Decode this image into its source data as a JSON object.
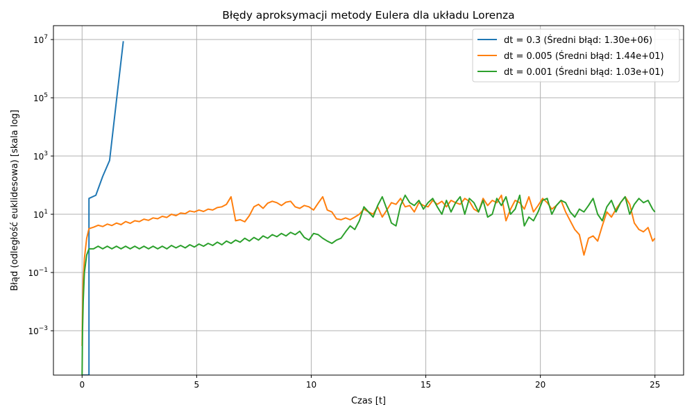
{
  "chart_data": {
    "type": "line",
    "title": "Błędy aproksymacji metody Eulera dla układu Lorenza",
    "xlabel": "Czas [t]",
    "ylabel": "Błąd (odległość euklidesowa) [skala log]",
    "xlim": [
      -1.25,
      26.25
    ],
    "ylim": [
      3e-05,
      30000000
    ],
    "yscale": "log",
    "grid": true,
    "legend_position": "top-right",
    "x_ticks": [
      0,
      5,
      10,
      15,
      20,
      25
    ],
    "x_tick_labels": [
      "0",
      "5",
      "10",
      "15",
      "20",
      "25"
    ],
    "y_ticks": [
      0.001,
      0.1,
      10,
      1000,
      100000,
      10000000
    ],
    "y_tick_labels": [
      {
        "base": "10",
        "exp": "−3"
      },
      {
        "base": "10",
        "exp": "−1"
      },
      {
        "base": "10",
        "exp": "1"
      },
      {
        "base": "10",
        "exp": "3"
      },
      {
        "base": "10",
        "exp": "5"
      },
      {
        "base": "10",
        "exp": "7"
      }
    ],
    "series": [
      {
        "name": "dt = 0.3 (Średni błąd: 1.30e+06)",
        "color": "#1f77b4",
        "x": [
          0.0,
          0.3,
          0.3,
          0.6,
          0.9,
          1.2,
          1.5,
          1.8
        ],
        "y": [
          3e-05,
          3e-05,
          35,
          45,
          200,
          700,
          80000,
          8800000
        ]
      },
      {
        "name": "dt = 0.005 (Średni błąd: 1.44e+01)",
        "color": "#ff7f0e",
        "x": [
          0.0,
          0.02,
          0.05,
          0.1,
          0.2,
          0.3,
          0.5,
          0.7,
          0.9,
          1.1,
          1.3,
          1.5,
          1.7,
          1.9,
          2.1,
          2.3,
          2.5,
          2.7,
          2.9,
          3.1,
          3.3,
          3.5,
          3.7,
          3.9,
          4.1,
          4.3,
          4.5,
          4.7,
          4.9,
          5.1,
          5.3,
          5.5,
          5.7,
          5.9,
          6.1,
          6.3,
          6.5,
          6.7,
          6.9,
          7.1,
          7.3,
          7.5,
          7.7,
          7.9,
          8.1,
          8.3,
          8.5,
          8.7,
          8.9,
          9.1,
          9.3,
          9.5,
          9.7,
          9.9,
          10.1,
          10.3,
          10.5,
          10.7,
          10.9,
          11.1,
          11.3,
          11.5,
          11.7,
          11.9,
          12.1,
          12.3,
          12.5,
          12.7,
          12.9,
          13.1,
          13.3,
          13.5,
          13.7,
          13.9,
          14.1,
          14.3,
          14.5,
          14.7,
          14.9,
          15.1,
          15.3,
          15.5,
          15.7,
          15.9,
          16.1,
          16.3,
          16.5,
          16.7,
          16.9,
          17.1,
          17.3,
          17.5,
          17.7,
          17.9,
          18.1,
          18.3,
          18.5,
          18.7,
          18.9,
          19.1,
          19.3,
          19.5,
          19.7,
          19.9,
          20.1,
          20.3,
          20.5,
          20.7,
          20.9,
          21.1,
          21.3,
          21.5,
          21.7,
          21.9,
          22.1,
          22.3,
          22.5,
          22.7,
          22.9,
          23.1,
          23.3,
          23.5,
          23.7,
          23.9,
          24.1,
          24.3,
          24.5,
          24.7,
          24.9,
          25.0
        ],
        "y": [
          0.0003,
          0.004,
          0.05,
          0.3,
          1.5,
          3.2,
          3.6,
          4.2,
          3.8,
          4.6,
          4.1,
          5.0,
          4.4,
          5.6,
          4.9,
          6.0,
          5.6,
          6.8,
          6.2,
          7.5,
          7.0,
          8.5,
          7.8,
          10,
          9.0,
          11,
          10.5,
          13,
          12,
          14,
          12.5,
          15,
          14,
          17,
          18,
          22,
          40,
          6,
          6.5,
          5.5,
          9,
          18,
          22,
          16,
          24,
          28,
          25,
          20,
          26,
          28,
          18,
          16,
          20,
          18,
          14,
          24,
          40,
          14,
          12,
          7,
          6.5,
          7.5,
          6.5,
          8,
          10,
          15,
          12,
          10,
          18,
          8,
          14,
          25,
          22,
          35,
          18,
          20,
          12,
          25,
          20,
          18,
          30,
          22,
          28,
          18,
          30,
          25,
          22,
          35,
          28,
          15,
          12,
          35,
          20,
          30,
          25,
          45,
          6,
          15,
          30,
          25,
          15,
          40,
          12,
          20,
          35,
          25,
          15,
          20,
          30,
          12,
          6,
          3,
          2,
          0.4,
          1.5,
          1.8,
          1.2,
          4,
          12,
          8,
          15,
          25,
          40,
          22,
          5,
          3,
          2.5,
          3.5,
          1.2,
          1.5
        ]
      },
      {
        "name": "dt = 0.001 (Średni błąd: 1.03e+01)",
        "color": "#2ca02c",
        "x": [
          0.0,
          0.02,
          0.05,
          0.1,
          0.2,
          0.3,
          0.5,
          0.7,
          0.9,
          1.1,
          1.3,
          1.5,
          1.7,
          1.9,
          2.1,
          2.3,
          2.5,
          2.7,
          2.9,
          3.1,
          3.3,
          3.5,
          3.7,
          3.9,
          4.1,
          4.3,
          4.5,
          4.7,
          4.9,
          5.1,
          5.3,
          5.5,
          5.7,
          5.9,
          6.1,
          6.3,
          6.5,
          6.7,
          6.9,
          7.1,
          7.3,
          7.5,
          7.7,
          7.9,
          8.1,
          8.3,
          8.5,
          8.7,
          8.9,
          9.1,
          9.3,
          9.5,
          9.7,
          9.9,
          10.1,
          10.3,
          10.5,
          10.7,
          10.9,
          11.1,
          11.3,
          11.5,
          11.7,
          11.9,
          12.1,
          12.3,
          12.5,
          12.7,
          12.9,
          13.1,
          13.3,
          13.5,
          13.7,
          13.9,
          14.1,
          14.3,
          14.5,
          14.7,
          14.9,
          15.1,
          15.3,
          15.5,
          15.7,
          15.9,
          16.1,
          16.3,
          16.5,
          16.7,
          16.9,
          17.1,
          17.3,
          17.5,
          17.7,
          17.9,
          18.1,
          18.3,
          18.5,
          18.7,
          18.9,
          19.1,
          19.3,
          19.5,
          19.7,
          19.9,
          20.1,
          20.3,
          20.5,
          20.7,
          20.9,
          21.1,
          21.3,
          21.5,
          21.7,
          21.9,
          22.1,
          22.3,
          22.5,
          22.7,
          22.9,
          23.1,
          23.3,
          23.5,
          23.7,
          23.9,
          24.1,
          24.3,
          24.5,
          24.7,
          24.9,
          25.0
        ],
        "y": [
          3e-05,
          0.001,
          0.01,
          0.1,
          0.4,
          0.65,
          0.65,
          0.8,
          0.65,
          0.8,
          0.65,
          0.8,
          0.65,
          0.8,
          0.65,
          0.8,
          0.65,
          0.8,
          0.65,
          0.8,
          0.65,
          0.8,
          0.65,
          0.85,
          0.7,
          0.85,
          0.7,
          0.9,
          0.75,
          0.95,
          0.8,
          1.0,
          0.85,
          1.1,
          0.9,
          1.2,
          1.0,
          1.3,
          1.1,
          1.5,
          1.2,
          1.6,
          1.3,
          1.8,
          1.5,
          2.0,
          1.7,
          2.2,
          1.8,
          2.4,
          2.0,
          2.6,
          1.6,
          1.3,
          2.2,
          2.0,
          1.5,
          1.2,
          1.0,
          1.3,
          1.5,
          2.5,
          4,
          3,
          6,
          18,
          12,
          8,
          20,
          40,
          15,
          5,
          4,
          20,
          45,
          25,
          20,
          30,
          15,
          25,
          35,
          18,
          10,
          30,
          12,
          25,
          40,
          10,
          35,
          25,
          12,
          30,
          8,
          10,
          35,
          20,
          40,
          10,
          15,
          45,
          4,
          8,
          6,
          12,
          30,
          35,
          10,
          20,
          30,
          25,
          12,
          8,
          15,
          12,
          20,
          35,
          10,
          6,
          18,
          30,
          12,
          25,
          40,
          10,
          22,
          35,
          25,
          30,
          15,
          12
        ]
      }
    ]
  }
}
